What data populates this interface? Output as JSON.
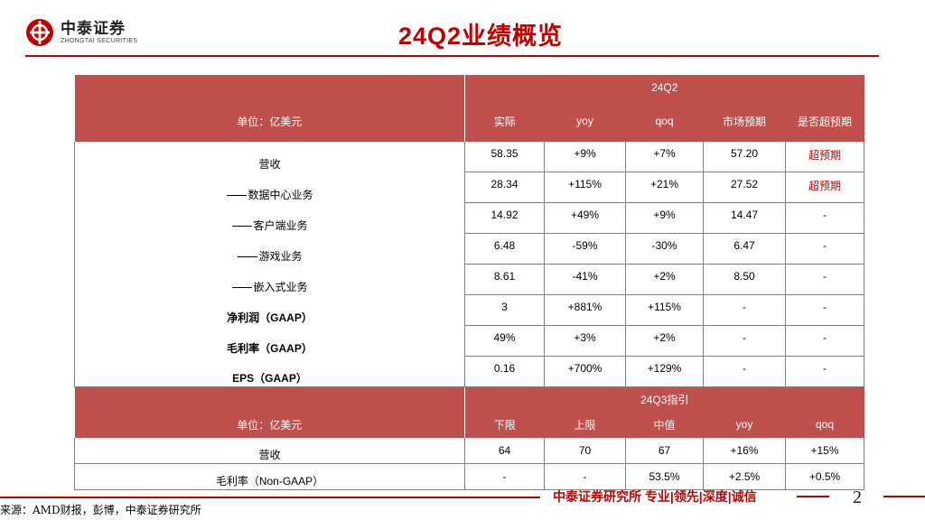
{
  "brand": {
    "name_cn": "中泰证券",
    "name_en": "ZHONGTAI SECURITIES"
  },
  "title": "24Q2业绩概览",
  "table1": {
    "section_label": "24Q2",
    "unit_label": "单位：亿美元",
    "columns": [
      "实际",
      "yoy",
      "qoq",
      "市场预期",
      "是否超预期"
    ],
    "rows": [
      {
        "name": "营收",
        "values": [
          "58.35",
          "+9%",
          "+7%",
          "57.20",
          "超预期"
        ]
      },
      {
        "name": "数据中心业务",
        "values": [
          "28.34",
          "+115%",
          "+21%",
          "27.52",
          "超预期"
        ]
      },
      {
        "name": "客户端业务",
        "values": [
          "14.92",
          "+49%",
          "+9%",
          "14.47",
          "-"
        ]
      },
      {
        "name": "游戏业务",
        "values": [
          "6.48",
          "-59%",
          "-30%",
          "6.47",
          "-"
        ]
      },
      {
        "name": "嵌入式业务",
        "values": [
          "8.61",
          "-41%",
          "+2%",
          "8.50",
          "-"
        ]
      },
      {
        "name": "净利润（GAAP）",
        "values": [
          "3",
          "+881%",
          "+115%",
          "-",
          "-"
        ]
      },
      {
        "name": "毛利率（GAAP）",
        "values": [
          "49%",
          "+3%",
          "+2%",
          "-",
          "-"
        ]
      },
      {
        "name": "EPS（GAAP）",
        "values": [
          "0.16",
          "+700%",
          "+129%",
          "-",
          "-"
        ]
      }
    ]
  },
  "table2": {
    "section_label": "24Q3指引",
    "unit_label": "单位：亿美元",
    "columns": [
      "下限",
      "上限",
      "中值",
      "yoy",
      "qoq"
    ],
    "rows": [
      {
        "name": "营收",
        "values": [
          "64",
          "70",
          "67",
          "+16%",
          "+15%"
        ]
      },
      {
        "name": "毛利率（Non-GAAP）",
        "values": [
          "-",
          "-",
          "53.5%",
          "+2.5%",
          "+0.5%"
        ]
      }
    ]
  },
  "footer": {
    "slogan": "中泰证券研究所 专业|领先|深度|诚信",
    "page_number": "2",
    "source": "来源：AMD财报，彭博，中泰证券研究所"
  },
  "colors": {
    "accent": "#c00000",
    "header_fill": "#c0504d"
  }
}
